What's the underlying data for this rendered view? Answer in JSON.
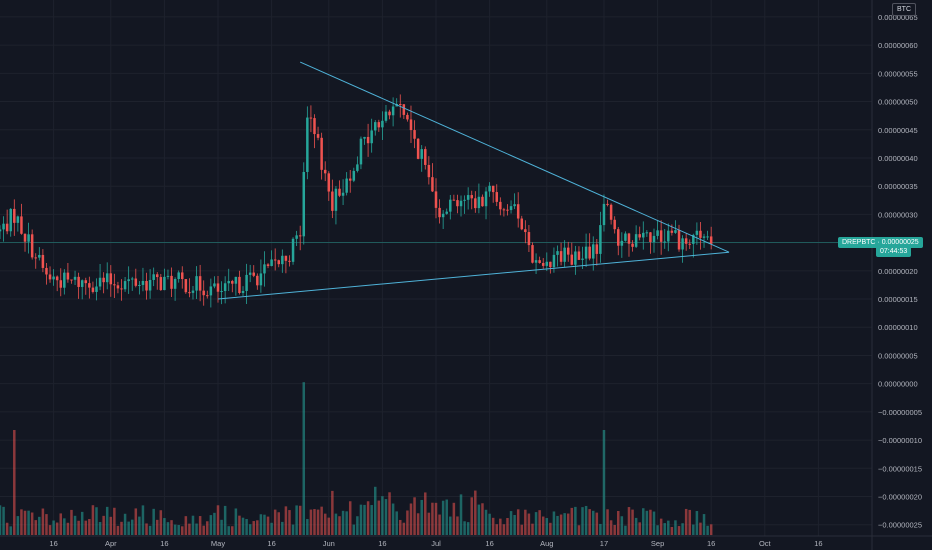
{
  "symbol": "DREPBTC",
  "price_label": "0.00000025",
  "countdown": "07:44:53",
  "unit": "BTC",
  "colors": {
    "background": "#131722",
    "grid": "#1e222d",
    "up": "#26a69a",
    "down": "#ef5350",
    "trendline": "#4fb3d9",
    "axis_text": "#b2b5be"
  },
  "chart_data": {
    "type": "candlestick",
    "title": "",
    "xlabel": "",
    "ylabel": "",
    "grid": true,
    "price_axis": {
      "ylim": [
        -2.7e-07,
        6.8e-07
      ],
      "ticks": [
        6.5e-07,
        6e-07,
        5.5e-07,
        5e-07,
        4.5e-07,
        4e-07,
        3.5e-07,
        3e-07,
        2.5e-07,
        2e-07,
        1.5e-07,
        1e-07,
        5e-08,
        0,
        -5e-08,
        -1e-07,
        -1.5e-07,
        -2e-07,
        -2.5e-07
      ],
      "tick_labels": [
        "0.00000065",
        "0.00000060",
        "0.00000055",
        "0.00000050",
        "0.00000045",
        "0.00000040",
        "0.00000035",
        "0.00000030",
        "0.00000025",
        "0.00000020",
        "0.00000015",
        "0.00000010",
        "0.00000005",
        "0.00000000",
        "−0.00000005",
        "−0.00000010",
        "−0.00000015",
        "−0.00000020",
        "−0.00000025"
      ]
    },
    "time_axis": {
      "range": [
        "2021-03-01",
        "2021-10-31"
      ],
      "ticks": [
        {
          "date": "2021-03-16",
          "label": "16"
        },
        {
          "date": "2021-04-01",
          "label": "Apr"
        },
        {
          "date": "2021-04-16",
          "label": "16"
        },
        {
          "date": "2021-05-01",
          "label": "May"
        },
        {
          "date": "2021-05-16",
          "label": "16"
        },
        {
          "date": "2021-06-01",
          "label": "Jun"
        },
        {
          "date": "2021-06-16",
          "label": "16"
        },
        {
          "date": "2021-07-01",
          "label": "Jul"
        },
        {
          "date": "2021-07-16",
          "label": "16"
        },
        {
          "date": "2021-08-01",
          "label": "Aug"
        },
        {
          "date": "2021-08-17",
          "label": "17"
        },
        {
          "date": "2021-09-01",
          "label": "Sep"
        },
        {
          "date": "2021-09-16",
          "label": "16"
        },
        {
          "date": "2021-10-01",
          "label": "Oct"
        },
        {
          "date": "2021-10-16",
          "label": "16"
        }
      ]
    },
    "last_price": 2.5e-07,
    "close_path": [
      [
        "2021-03-01",
        2.7e-07
      ],
      [
        "2021-03-05",
        3e-07
      ],
      [
        "2021-03-10",
        2.4e-07
      ],
      [
        "2021-03-14",
        1.9e-07
      ],
      [
        "2021-03-20",
        1.8e-07
      ],
      [
        "2021-04-01",
        1.8e-07
      ],
      [
        "2021-04-10",
        1.8e-07
      ],
      [
        "2021-04-20",
        1.8e-07
      ],
      [
        "2021-04-28",
        1.7e-07
      ],
      [
        "2021-05-02",
        1.6e-07
      ],
      [
        "2021-05-08",
        1.8e-07
      ],
      [
        "2021-05-15",
        2e-07
      ],
      [
        "2021-05-21",
        2.3e-07
      ],
      [
        "2021-05-24",
        2.7e-07
      ],
      [
        "2021-05-26",
        4.7e-07
      ],
      [
        "2021-05-29",
        4.2e-07
      ],
      [
        "2021-06-02",
        3.2e-07
      ],
      [
        "2021-06-06",
        3.6e-07
      ],
      [
        "2021-06-10",
        4.2e-07
      ],
      [
        "2021-06-16",
        4.7e-07
      ],
      [
        "2021-06-21",
        5e-07
      ],
      [
        "2021-06-23",
        4.6e-07
      ],
      [
        "2021-06-27",
        4e-07
      ],
      [
        "2021-07-02",
        3.1e-07
      ],
      [
        "2021-07-08",
        3.3e-07
      ],
      [
        "2021-07-12",
        3.2e-07
      ],
      [
        "2021-07-16",
        3.4e-07
      ],
      [
        "2021-07-20",
        3.2e-07
      ],
      [
        "2021-07-25",
        2.9e-07
      ],
      [
        "2021-07-29",
        2.1e-07
      ],
      [
        "2021-08-04",
        2.3e-07
      ],
      [
        "2021-08-10",
        2.2e-07
      ],
      [
        "2021-08-15",
        2.4e-07
      ],
      [
        "2021-08-17",
        3.3e-07
      ],
      [
        "2021-08-20",
        2.6e-07
      ],
      [
        "2021-08-27",
        2.5e-07
      ],
      [
        "2021-09-01",
        2.6e-07
      ],
      [
        "2021-09-05",
        2.7e-07
      ],
      [
        "2021-09-09",
        2.4e-07
      ],
      [
        "2021-09-13",
        2.6e-07
      ],
      [
        "2021-09-16",
        2.5e-07
      ]
    ],
    "volume_spikes": [
      {
        "date": "2021-03-05",
        "direction": "down",
        "relative": 0.75
      },
      {
        "date": "2021-05-25",
        "direction": "up",
        "relative": 1.0
      },
      {
        "date": "2021-08-17",
        "direction": "up",
        "relative": 0.75
      }
    ],
    "trendlines": [
      {
        "name": "upper",
        "from": [
          "2021-05-24",
          5.7e-07
        ],
        "to": [
          "2021-09-21",
          2.33e-07
        ]
      },
      {
        "name": "lower",
        "from": [
          "2021-05-01",
          1.5e-07
        ],
        "to": [
          "2021-09-21",
          2.33e-07
        ]
      }
    ]
  }
}
